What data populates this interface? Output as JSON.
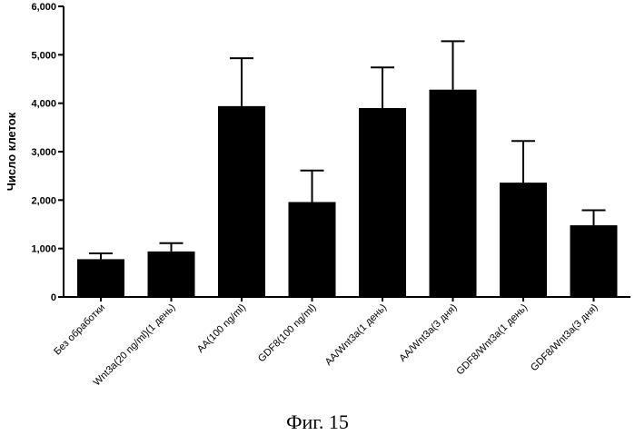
{
  "chart_data": {
    "type": "bar",
    "ylabel": "Число клеток",
    "xlabel": "",
    "ylim": [
      0,
      6000
    ],
    "yticks": [
      0,
      1000,
      2000,
      3000,
      4000,
      5000,
      6000
    ],
    "ytick_labels": [
      "0",
      "1,000",
      "2,000",
      "3,000",
      "4,000",
      "5,000",
      "6,000"
    ],
    "categories": [
      "Без обработки",
      "Wnt3a(20 ng/ml)(1 день)",
      "AA(100 ng/ml)",
      "GDF8(100 ng/ml)",
      "AA/Wnt3a(1 день)",
      "AA/Wnt3a(3 дня)",
      "GDF8/Wnt3a(1 день)",
      "GDF8/Wnt3a(3 дня)"
    ],
    "values": [
      780,
      940,
      3940,
      1960,
      3900,
      4280,
      2360,
      1480
    ],
    "error_upper": [
      900,
      1110,
      4930,
      2610,
      4740,
      5280,
      3220,
      1790
    ],
    "grid": false,
    "bar_color": "#000000"
  },
  "caption": "Фиг. 15"
}
